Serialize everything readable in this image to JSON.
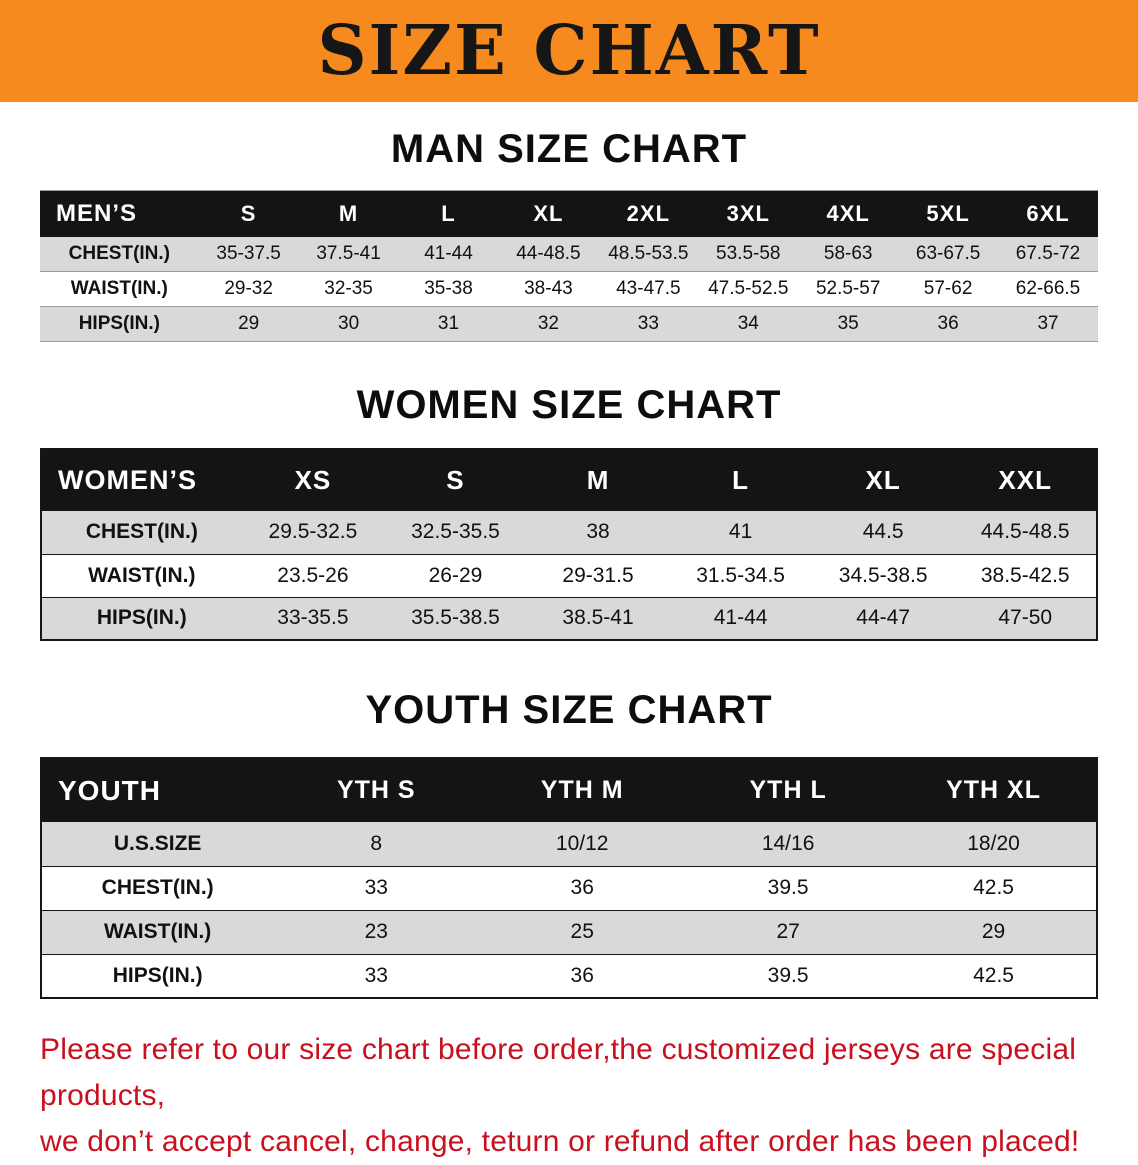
{
  "banner": {
    "title": "SIZE CHART"
  },
  "colors": {
    "banner_bg": "#F68A1E",
    "table_header_bg": "#141414",
    "row_alt_bg": "#D9D9D9",
    "footer_text": "#C8101E"
  },
  "sections": [
    {
      "id": "men",
      "heading": "MAN SIZE CHART",
      "table": {
        "header": [
          "MEN’S",
          "S",
          "M",
          "L",
          "XL",
          "2XL",
          "3XL",
          "4XL",
          "5XL",
          "6XL"
        ],
        "rows": [
          {
            "label": "CHEST(IN.)",
            "values": [
              "35-37.5",
              "37.5-41",
              "41-44",
              "44-48.5",
              "48.5-53.5",
              "53.5-58",
              "58-63",
              "63-67.5",
              "67.5-72"
            ]
          },
          {
            "label": "WAIST(IN.)",
            "values": [
              "29-32",
              "32-35",
              "35-38",
              "38-43",
              "43-47.5",
              "47.5-52.5",
              "52.5-57",
              "57-62",
              "62-66.5"
            ]
          },
          {
            "label": "HIPS(IN.)",
            "values": [
              "29",
              "30",
              "31",
              "32",
              "33",
              "34",
              "35",
              "36",
              "37"
            ]
          }
        ]
      }
    },
    {
      "id": "women",
      "heading": "WOMEN SIZE CHART",
      "table": {
        "header": [
          "WOMEN’S",
          "XS",
          "S",
          "M",
          "L",
          "XL",
          "XXL"
        ],
        "rows": [
          {
            "label": "CHEST(IN.)",
            "values": [
              "29.5-32.5",
              "32.5-35.5",
              "38",
              "41",
              "44.5",
              "44.5-48.5"
            ]
          },
          {
            "label": "WAIST(IN.)",
            "values": [
              "23.5-26",
              "26-29",
              "29-31.5",
              "31.5-34.5",
              "34.5-38.5",
              "38.5-42.5"
            ]
          },
          {
            "label": "HIPS(IN.)",
            "values": [
              "33-35.5",
              "35.5-38.5",
              "38.5-41",
              "41-44",
              "44-47",
              "47-50"
            ]
          }
        ]
      }
    },
    {
      "id": "youth",
      "heading": "YOUTH SIZE CHART",
      "table": {
        "header": [
          "YOUTH",
          "YTH S",
          "YTH M",
          "YTH L",
          "YTH XL"
        ],
        "rows": [
          {
            "label": "U.S.SIZE",
            "values": [
              "8",
              "10/12",
              "14/16",
              "18/20"
            ]
          },
          {
            "label": "CHEST(IN.)",
            "values": [
              "33",
              "36",
              "39.5",
              "42.5"
            ]
          },
          {
            "label": "WAIST(IN.)",
            "values": [
              "23",
              "25",
              "27",
              "29"
            ]
          },
          {
            "label": "HIPS(IN.)",
            "values": [
              "33",
              "36",
              "39.5",
              "42.5"
            ]
          }
        ]
      }
    }
  ],
  "footer": {
    "line1": "Please refer to our size chart before order,the customized jerseys are special products,",
    "line2": "we don’t accept cancel, change, teturn or refund after order has been placed!"
  }
}
